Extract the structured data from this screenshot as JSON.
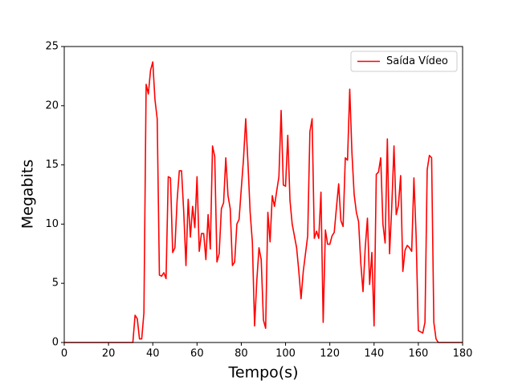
{
  "chart_data": {
    "type": "line",
    "xlabel": "Tempo(s)",
    "ylabel": "Megabits",
    "x": [
      0,
      31,
      32,
      33,
      34,
      35,
      36,
      37,
      38,
      39,
      40,
      41,
      42,
      43,
      44,
      45,
      46,
      47,
      48,
      49,
      50,
      51,
      52,
      53,
      54,
      55,
      56,
      57,
      58,
      59,
      60,
      61,
      62,
      63,
      64,
      65,
      66,
      67,
      68,
      69,
      70,
      71,
      72,
      73,
      74,
      75,
      76,
      77,
      78,
      79,
      80,
      81,
      82,
      83,
      84,
      85,
      86,
      87,
      88,
      89,
      90,
      91,
      92,
      93,
      94,
      95,
      96,
      97,
      98,
      99,
      100,
      101,
      102,
      103,
      104,
      105,
      106,
      107,
      108,
      109,
      110,
      111,
      112,
      113,
      114,
      115,
      116,
      117,
      118,
      119,
      120,
      121,
      122,
      123,
      124,
      125,
      126,
      127,
      128,
      129,
      130,
      131,
      132,
      133,
      134,
      135,
      136,
      137,
      138,
      139,
      140,
      141,
      142,
      143,
      144,
      145,
      146,
      147,
      148,
      149,
      150,
      151,
      152,
      153,
      154,
      155,
      156,
      157,
      158,
      159,
      160,
      161,
      162,
      163,
      164,
      165,
      166,
      167,
      168,
      169,
      180
    ],
    "series": [
      {
        "name": "Saída Vídeo",
        "color": "#ff0000",
        "values": [
          0,
          0,
          2.3,
          2.0,
          0.3,
          0.3,
          2.5,
          21.8,
          21.0,
          23.0,
          23.7,
          20.5,
          18.9,
          5.7,
          5.6,
          5.9,
          5.4,
          14.0,
          13.9,
          7.6,
          8.0,
          12.0,
          14.5,
          14.5,
          11.0,
          6.5,
          12.1,
          8.9,
          11.5,
          9.7,
          14.0,
          7.7,
          9.2,
          9.2,
          7.0,
          10.8,
          7.9,
          16.6,
          15.7,
          6.8,
          7.5,
          11.3,
          11.8,
          15.6,
          12.4,
          11.3,
          6.5,
          6.8,
          10.0,
          10.4,
          13.0,
          15.5,
          18.9,
          15.2,
          11.0,
          8.5,
          1.4,
          5.2,
          8.0,
          7.0,
          1.9,
          1.2,
          11.0,
          8.5,
          12.4,
          11.5,
          12.8,
          14.0,
          19.6,
          13.3,
          13.2,
          17.5,
          12.0,
          10.0,
          9.0,
          8.0,
          6.0,
          3.7,
          6.0,
          7.5,
          9.0,
          17.8,
          18.9,
          8.8,
          9.4,
          8.8,
          12.7,
          1.7,
          9.5,
          8.3,
          8.3,
          9.0,
          9.3,
          11.4,
          13.4,
          10.3,
          9.8,
          15.6,
          15.4,
          21.4,
          16.0,
          12.5,
          11.0,
          10.2,
          6.7,
          4.3,
          8.0,
          10.5,
          4.9,
          7.6,
          1.4,
          14.2,
          14.4,
          15.6,
          10.0,
          8.4,
          17.2,
          7.5,
          11.5,
          16.6,
          10.8,
          11.6,
          14.1,
          6.0,
          7.8,
          8.2,
          8.0,
          7.7,
          13.9,
          9.0,
          1.0,
          0.9,
          0.8,
          1.7,
          14.6,
          15.8,
          15.6,
          1.7,
          0.3,
          0,
          0
        ]
      }
    ],
    "xlim": [
      0,
      180
    ],
    "xticks": [
      0,
      20,
      40,
      60,
      80,
      100,
      120,
      140,
      160,
      180
    ],
    "ylim": [
      0,
      25
    ],
    "yticks": [
      0,
      5,
      10,
      15,
      20,
      25
    ],
    "legend": "upper right"
  }
}
